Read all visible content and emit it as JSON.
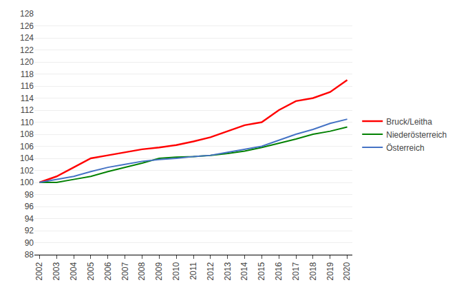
{
  "chart_data": {
    "type": "line",
    "x": [
      2002,
      2003,
      2004,
      2005,
      2006,
      2007,
      2008,
      2009,
      2010,
      2011,
      2012,
      2013,
      2014,
      2015,
      2016,
      2017,
      2018,
      2019,
      2020
    ],
    "series": [
      {
        "name": "Bruck/Leitha",
        "color": "#ff0000",
        "values": [
          100.0,
          101.0,
          102.5,
          104.0,
          104.5,
          105.0,
          105.5,
          105.8,
          106.2,
          106.8,
          107.5,
          108.5,
          109.5,
          110.0,
          112.0,
          113.5,
          114.0,
          115.0,
          117.0
        ]
      },
      {
        "name": "Niederösterreich",
        "color": "#008000",
        "values": [
          100.0,
          100.0,
          100.5,
          101.0,
          101.8,
          102.5,
          103.2,
          104.0,
          104.2,
          104.3,
          104.5,
          104.8,
          105.2,
          105.8,
          106.5,
          107.2,
          108.0,
          108.5,
          109.2
        ]
      },
      {
        "name": "Österreich",
        "color": "#4472c4",
        "values": [
          100.0,
          100.5,
          101.0,
          101.8,
          102.5,
          103.0,
          103.5,
          103.8,
          104.0,
          104.3,
          104.5,
          105.0,
          105.5,
          106.0,
          107.0,
          108.0,
          108.8,
          109.8,
          110.5
        ]
      }
    ],
    "xlim": [
      2001.7,
      2020.3
    ],
    "xticks": [
      2002,
      2003,
      2004,
      2005,
      2006,
      2007,
      2008,
      2009,
      2010,
      2011,
      2012,
      2013,
      2014,
      2015,
      2016,
      2017,
      2018,
      2019,
      2020
    ],
    "ylim": [
      88,
      128
    ],
    "yticks": [
      88,
      90,
      92,
      94,
      96,
      98,
      100,
      102,
      104,
      106,
      108,
      110,
      112,
      114,
      116,
      118,
      120,
      122,
      124,
      126,
      128
    ],
    "grid": true,
    "legend": "right"
  }
}
